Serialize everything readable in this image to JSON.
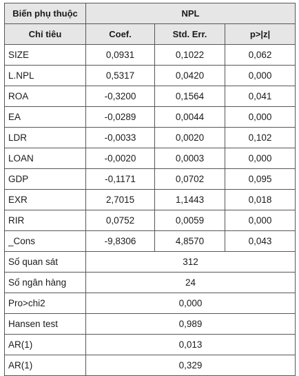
{
  "header": {
    "dependent_label": "Biến phụ thuộc",
    "dependent_value": "NPL",
    "indicator_label": "Chỉ tiêu",
    "columns": [
      "Coef.",
      "Std. Err.",
      "p>|z|"
    ]
  },
  "rows": [
    {
      "name": "SIZE",
      "coef": "0,0931",
      "se": "0,1022",
      "p": "0,062"
    },
    {
      "name": "L.NPL",
      "coef": "0,5317",
      "se": "0,0420",
      "p": "0,000"
    },
    {
      "name": "ROA",
      "coef": "-0,3200",
      "se": "0,1564",
      "p": "0,041"
    },
    {
      "name": "EA",
      "coef": "-0,0289",
      "se": "0,0044",
      "p": "0,000"
    },
    {
      "name": "LDR",
      "coef": "-0,0033",
      "se": "0,0020",
      "p": "0,102"
    },
    {
      "name": "LOAN",
      "coef": "-0,0020",
      "se": "0,0003",
      "p": "0,000"
    },
    {
      "name": "GDP",
      "coef": "-0,1171",
      "se": "0,0702",
      "p": "0,095"
    },
    {
      "name": "EXR",
      "coef": "2,7015",
      "se": "1,1443",
      "p": "0,018"
    },
    {
      "name": "RIR",
      "coef": "0,0752",
      "se": "0,0059",
      "p": "0,000"
    },
    {
      "name": "_Cons",
      "coef": "-9,8306",
      "se": "4,8570",
      "p": "0,043"
    }
  ],
  "stats": [
    {
      "name": "Số quan sát",
      "value": "312"
    },
    {
      "name": "Số ngân hàng",
      "value": "24"
    },
    {
      "name": "Pro>chi2",
      "value": "0,000"
    },
    {
      "name": "Hansen test",
      "value": "0,989"
    },
    {
      "name": "AR(1)",
      "value": "0,013"
    },
    {
      "name": "AR(1)",
      "value": "0,329"
    }
  ]
}
